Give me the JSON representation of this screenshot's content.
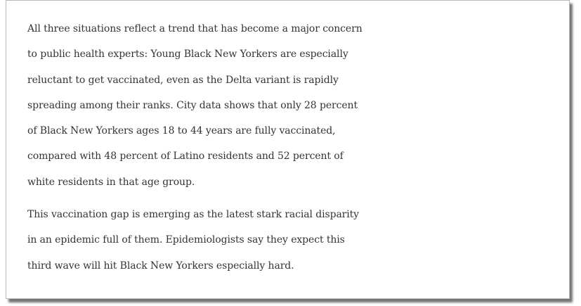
{
  "article": {
    "paragraphs": [
      {
        "lines": [
          "All three situations reflect a trend that has become a major concern",
          "to public health experts: Young Black New Yorkers are especially",
          "reluctant to get vaccinated, even as the Delta variant is rapidly",
          "spreading among their ranks. City data shows that only 28 percent",
          "of Black New Yorkers ages 18 to 44 years are fully vaccinated,",
          "compared with 48 percent of Latino residents and 52 percent of",
          "white residents in that age group."
        ]
      },
      {
        "lines": [
          "This vaccination gap is emerging as the latest stark racial disparity",
          "in an epidemic full of them. Epidemiologists say they expect this",
          "third wave will hit Black New Yorkers especially hard."
        ]
      }
    ]
  }
}
